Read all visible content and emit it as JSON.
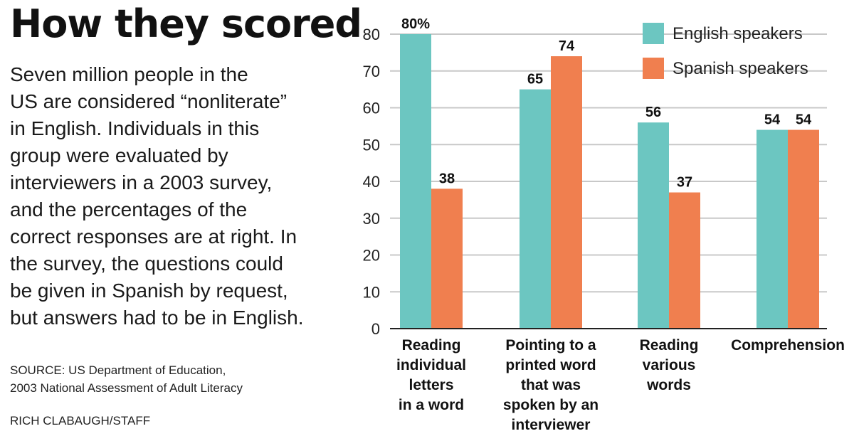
{
  "header": {
    "title": "How they scored",
    "description": [
      "Seven million people in the",
      "US are considered “nonliterate”",
      "in English. Individuals in this",
      "group were evaluated by",
      "interviewers in a 2003 survey,",
      "and the percentages of the",
      "correct responses are at right. In",
      "the survey, the questions could",
      "be given in Spanish by request,",
      "but answers had to be in English."
    ]
  },
  "footer": {
    "source_line1": "SOURCE: US Department of Education,",
    "source_line2": "2003 National Assessment of Adult Literacy",
    "credit": "RICH CLABAUGH/STAFF"
  },
  "colors": {
    "english": "#6cc6c1",
    "spanish": "#f07f4f",
    "grid": "#c8c8c8"
  },
  "chart_data": {
    "type": "bar",
    "categories": [
      [
        "Reading",
        "individual",
        "letters",
        "in a word"
      ],
      [
        "Pointing to a",
        "printed word",
        "that was",
        "spoken by an",
        "interviewer"
      ],
      [
        "Reading",
        "various",
        "words"
      ],
      [
        "Comprehension"
      ]
    ],
    "series": [
      {
        "name": "English speakers",
        "values": [
          80,
          65,
          56,
          54
        ]
      },
      {
        "name": "Spanish speakers",
        "values": [
          38,
          74,
          37,
          54
        ]
      }
    ],
    "data_labels": [
      [
        "80%",
        "65",
        "56",
        "54"
      ],
      [
        "38",
        "74",
        "37",
        "54"
      ]
    ],
    "ylim": [
      0,
      80
    ],
    "yticks": [
      0,
      10,
      20,
      30,
      40,
      50,
      60,
      70,
      80
    ],
    "grid": true,
    "legend": "top-right"
  }
}
